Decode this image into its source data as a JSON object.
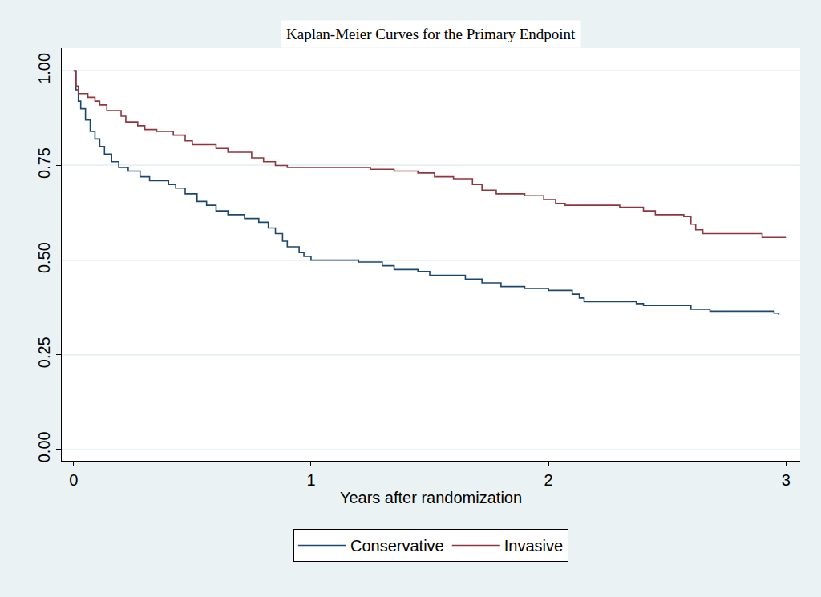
{
  "chart_data": {
    "type": "line",
    "title": "Kaplan-Meier Curves for the Primary Endpoint",
    "x_label": "Years after randomization",
    "xlim": [
      -0.05,
      3.06
    ],
    "xticks": [
      0,
      1,
      2,
      3
    ],
    "ylim": [
      -0.03,
      1.06
    ],
    "yticks": [
      {
        "value": 0,
        "label": "0.00"
      },
      {
        "value": 0.25,
        "label": "0.25"
      },
      {
        "value": 0.5,
        "label": "0.50"
      },
      {
        "value": 0.75,
        "label": "0.75"
      },
      {
        "value": 1,
        "label": "1.00"
      }
    ],
    "grid": true,
    "legend": "bottom",
    "line_style": "step",
    "series": [
      {
        "name": "Conservative",
        "color": "#1a476f",
        "x": [
          0,
          0.01,
          0.02,
          0.03,
          0.05,
          0.07,
          0.09,
          0.11,
          0.13,
          0.16,
          0.19,
          0.23,
          0.28,
          0.32,
          0.4,
          0.43,
          0.47,
          0.52,
          0.56,
          0.6,
          0.65,
          0.72,
          0.78,
          0.82,
          0.85,
          0.88,
          0.9,
          0.95,
          0.97,
          1.0,
          1.2,
          1.3,
          1.35,
          1.45,
          1.5,
          1.65,
          1.72,
          1.8,
          1.9,
          2.0,
          2.1,
          2.13,
          2.15,
          2.37,
          2.4,
          2.6,
          2.68,
          2.95,
          2.97
        ],
        "values": [
          1.0,
          0.95,
          0.92,
          0.9,
          0.87,
          0.84,
          0.82,
          0.8,
          0.78,
          0.76,
          0.745,
          0.735,
          0.72,
          0.71,
          0.7,
          0.69,
          0.675,
          0.655,
          0.645,
          0.63,
          0.62,
          0.61,
          0.6,
          0.585,
          0.57,
          0.55,
          0.535,
          0.52,
          0.51,
          0.5,
          0.495,
          0.485,
          0.475,
          0.47,
          0.46,
          0.45,
          0.44,
          0.43,
          0.425,
          0.42,
          0.41,
          0.4,
          0.39,
          0.385,
          0.38,
          0.37,
          0.365,
          0.36,
          0.355
        ]
      },
      {
        "name": "Invasive",
        "color": "#90353b",
        "x": [
          0,
          0.01,
          0.02,
          0.06,
          0.09,
          0.11,
          0.14,
          0.2,
          0.22,
          0.27,
          0.3,
          0.35,
          0.42,
          0.47,
          0.5,
          0.6,
          0.65,
          0.75,
          0.8,
          0.85,
          0.9,
          1.25,
          1.35,
          1.45,
          1.52,
          1.6,
          1.68,
          1.72,
          1.78,
          1.9,
          1.98,
          2.03,
          2.07,
          2.3,
          2.4,
          2.45,
          2.57,
          2.6,
          2.62,
          2.65,
          2.9,
          3.0
        ],
        "values": [
          1.0,
          0.96,
          0.94,
          0.93,
          0.92,
          0.91,
          0.895,
          0.88,
          0.865,
          0.855,
          0.845,
          0.84,
          0.83,
          0.815,
          0.805,
          0.795,
          0.785,
          0.77,
          0.76,
          0.75,
          0.745,
          0.74,
          0.735,
          0.73,
          0.72,
          0.715,
          0.7,
          0.685,
          0.675,
          0.67,
          0.66,
          0.65,
          0.645,
          0.64,
          0.63,
          0.62,
          0.615,
          0.595,
          0.58,
          0.57,
          0.56,
          0.56
        ]
      }
    ]
  }
}
